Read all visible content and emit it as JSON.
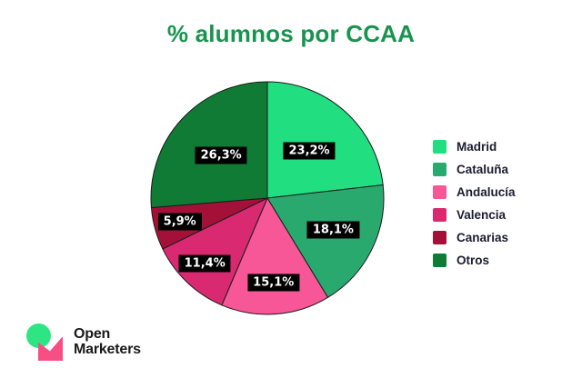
{
  "title": "% alumnos por CCAA",
  "colors": {
    "title": "#17944E",
    "slice_stroke": "#1B1B1B",
    "label_bg": "#000000",
    "label_text": "#FFFFFF",
    "legend_text": "#1B1C2E"
  },
  "chart_data": {
    "type": "pie",
    "title": "% alumnos por CCAA",
    "categories": [
      "Madrid",
      "Cataluña",
      "Andalucía",
      "Valencia",
      "Canarias",
      "Otros"
    ],
    "values": [
      23.2,
      18.1,
      15.1,
      11.4,
      5.9,
      26.3
    ],
    "value_labels": [
      "23,2%",
      "18,1%",
      "15,1%",
      "11,4%",
      "5,9%",
      "26,3%"
    ],
    "slice_colors": [
      "#21DE80",
      "#2AA96E",
      "#F75796",
      "#D92A71",
      "#A31139",
      "#107B35"
    ],
    "start_angle_deg": 0,
    "direction": "clockwise",
    "legend_position": "right",
    "value_label_style": "white-on-black"
  },
  "logo": {
    "line1": "Open",
    "line2": "Marketers",
    "circle_color": "#2EE583",
    "mark_color": "#F84E86"
  }
}
